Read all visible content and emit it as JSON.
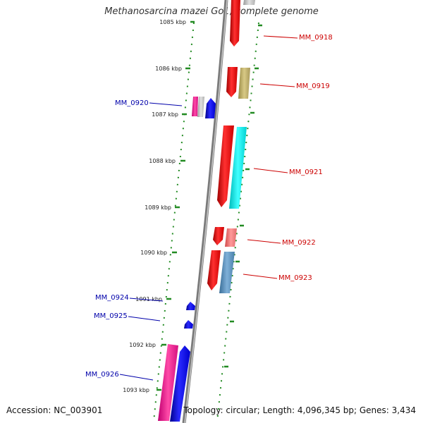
{
  "title": "Methanosarcina mazei Go1, complete genome",
  "footer": {
    "accession": "Accession: NC_003901",
    "topology": "Topology: circular; Length: 4,096,345 bp; Genes: 3,434"
  },
  "ticks": [
    "1085 kbp",
    "1086 kbp",
    "1087 kbp",
    "1088 kbp",
    "1089 kbp",
    "1090 kbp",
    "1091 kbp",
    "1092 kbp",
    "1093 kbp"
  ],
  "genes": [
    {
      "label": "MM_0918",
      "strand": "+"
    },
    {
      "label": "MM_0919",
      "strand": "+"
    },
    {
      "label": "MM_0920",
      "strand": "-"
    },
    {
      "label": "MM_0921",
      "strand": "+"
    },
    {
      "label": "MM_0922",
      "strand": "+"
    },
    {
      "label": "MM_0923",
      "strand": "+"
    },
    {
      "label": "MM_0924",
      "strand": "-"
    },
    {
      "label": "MM_0925",
      "strand": "-"
    },
    {
      "label": "MM_0926",
      "strand": "-"
    }
  ],
  "colors": {
    "forward_label": "#cc0000",
    "reverse_label": "#0000aa",
    "axis_dots": "#228b22",
    "backbone": "#888888"
  }
}
